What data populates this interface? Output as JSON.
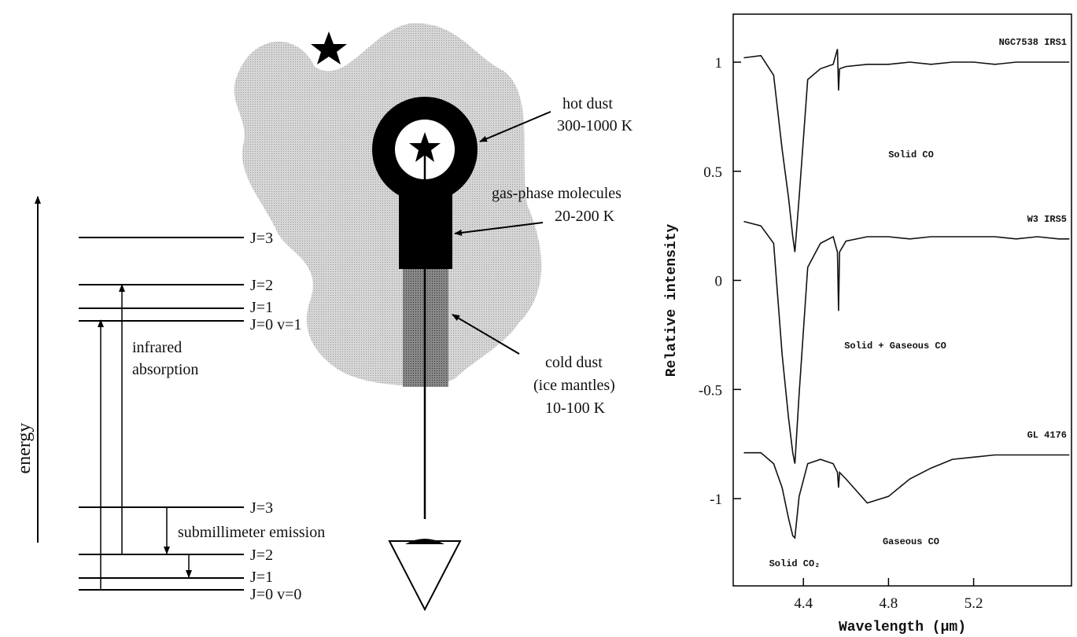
{
  "energy_diagram": {
    "axis_label": "energy",
    "upper_levels": [
      "J=3",
      "J=2",
      "J=1",
      "J=0 v=1"
    ],
    "lower_levels": [
      "J=3",
      "J=2",
      "J=1",
      "J=0 v=0"
    ],
    "absorption_label": [
      "infrared",
      "absorption"
    ],
    "emission_label": "submillimeter emission"
  },
  "sightline_diagram": {
    "hot_dust": [
      "hot dust",
      "300-1000 K"
    ],
    "gas_phase": [
      "gas-phase molecules",
      "20-200 K"
    ],
    "cold_dust": [
      "cold dust",
      "(ice mantles)",
      "10-100 K"
    ]
  },
  "chart_data": {
    "type": "line",
    "x_label": "Wavelength (μm)",
    "y_label": "Relative intensity",
    "x": [
      4.12,
      4.2,
      4.26,
      4.3,
      4.33,
      4.35,
      4.36,
      4.38,
      4.42,
      4.48,
      4.54,
      4.56,
      4.565,
      4.57,
      4.6,
      4.7,
      4.8,
      4.9,
      5.0,
      5.1,
      5.2,
      5.3,
      5.4,
      5.5,
      5.6,
      5.65
    ],
    "series": [
      {
        "name": "NGC7538 IRS1",
        "color": "#111111",
        "values": [
          1.02,
          1.03,
          0.94,
          0.6,
          0.38,
          0.2,
          0.13,
          0.38,
          0.92,
          0.97,
          0.99,
          1.06,
          0.87,
          0.97,
          0.98,
          0.99,
          0.99,
          1.0,
          0.99,
          1.0,
          1.0,
          0.99,
          1.0,
          1.0,
          1.0,
          1.0
        ]
      },
      {
        "name": "W3 IRS5",
        "color": "#111111",
        "values": [
          0.27,
          0.25,
          0.17,
          -0.34,
          -0.63,
          -0.79,
          -0.84,
          -0.52,
          0.06,
          0.17,
          0.2,
          0.13,
          -0.14,
          0.13,
          0.18,
          0.2,
          0.2,
          0.19,
          0.2,
          0.2,
          0.2,
          0.2,
          0.19,
          0.2,
          0.19,
          0.19
        ]
      },
      {
        "name": "GL 4176",
        "color": "#111111",
        "values": [
          -0.79,
          -0.79,
          -0.84,
          -0.95,
          -1.09,
          -1.17,
          -1.18,
          -0.99,
          -0.84,
          -0.82,
          -0.84,
          -0.88,
          -0.95,
          -0.88,
          -0.91,
          -1.02,
          -0.99,
          -0.91,
          -0.86,
          -0.82,
          -0.81,
          -0.8,
          -0.8,
          -0.8,
          -0.8,
          -0.8
        ]
      }
    ],
    "annotations": [
      "Solid CO",
      "Solid + Gaseous CO",
      "Gaseous CO",
      "Solid CO₂"
    ],
    "xlim": [
      4.07,
      5.66
    ],
    "ylim": [
      -1.4,
      1.22
    ],
    "xticks": [
      4.4,
      4.8,
      5.2
    ],
    "yticks": [
      -1,
      -0.5,
      0,
      0.5,
      1
    ]
  }
}
